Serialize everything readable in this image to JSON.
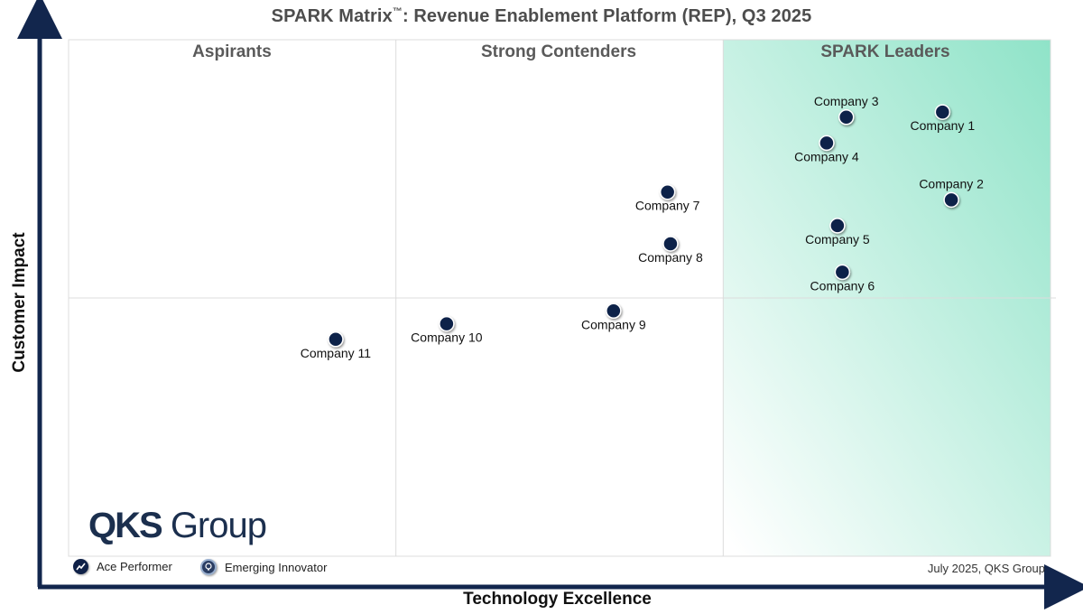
{
  "title_main": "SPARK Matrix",
  "title_tm": "™",
  "title_rest": ": Revenue Enablement Platform (REP), Q3 2025",
  "chart_data": {
    "type": "scatter",
    "title": "SPARK Matrix™: Revenue Enablement Platform (REP), Q3 2025",
    "xlabel": "Technology Excellence",
    "ylabel": "Customer Impact",
    "xlim": [
      0,
      100
    ],
    "ylim": [
      0,
      100
    ],
    "quadrants": [
      "Aspirants",
      "Strong Contenders",
      "SPARK Leaders"
    ],
    "points": [
      {
        "name": "Company 1",
        "x": 89.0,
        "y": 86.0,
        "label_pos": "below"
      },
      {
        "name": "Company 2",
        "x": 89.9,
        "y": 69.0,
        "label_pos": "above"
      },
      {
        "name": "Company 3",
        "x": 79.2,
        "y": 85.0,
        "label_pos": "above"
      },
      {
        "name": "Company 4",
        "x": 77.2,
        "y": 80.0,
        "label_pos": "below"
      },
      {
        "name": "Company 5",
        "x": 78.3,
        "y": 64.0,
        "label_pos": "below"
      },
      {
        "name": "Company 6",
        "x": 78.8,
        "y": 55.0,
        "label_pos": "below"
      },
      {
        "name": "Company 7",
        "x": 61.0,
        "y": 70.5,
        "label_pos": "below"
      },
      {
        "name": "Company 8",
        "x": 61.3,
        "y": 60.5,
        "label_pos": "below"
      },
      {
        "name": "Company 9",
        "x": 55.5,
        "y": 47.5,
        "label_pos": "below"
      },
      {
        "name": "Company 10",
        "x": 38.5,
        "y": 45.0,
        "label_pos": "below"
      },
      {
        "name": "Company 11",
        "x": 27.2,
        "y": 42.0,
        "label_pos": "below"
      }
    ]
  },
  "legend": {
    "ace_performer": "Ace Performer",
    "emerging_innovator": "Emerging Innovator"
  },
  "footer_note": "July 2025, QKS Group",
  "logo": {
    "bold": "QKS",
    "rest": "Group"
  },
  "colors": {
    "dot": "#0f2148",
    "leader_gradient": "#8fe3c8",
    "grid": "#dcdcdc",
    "axis": "#12264d"
  }
}
